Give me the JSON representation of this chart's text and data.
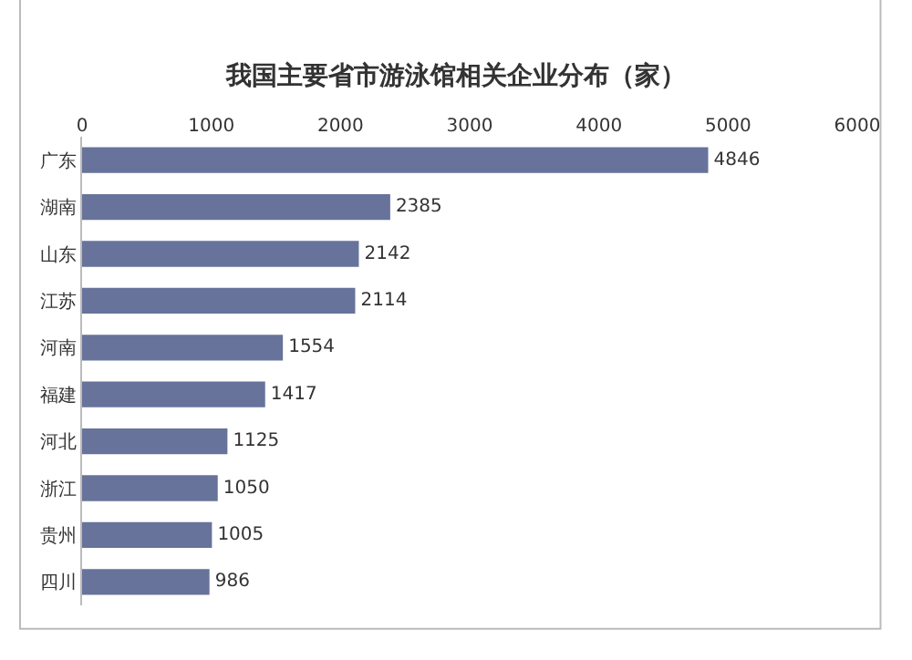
{
  "chart_data": {
    "type": "bar",
    "orientation": "horizontal",
    "title": "我国主要省市游泳馆相关企业分布（家）",
    "categories": [
      "广东",
      "湖南",
      "山东",
      "江苏",
      "河南",
      "福建",
      "河北",
      "浙江",
      "贵州",
      "四川"
    ],
    "values": [
      4846,
      2385,
      2142,
      2114,
      1554,
      1417,
      1125,
      1050,
      1005,
      986
    ],
    "color": "#67739a",
    "xlim": [
      0,
      6000
    ],
    "xticks": [
      0,
      1000,
      2000,
      3000,
      4000,
      5000,
      6000
    ],
    "data_labels": true
  }
}
